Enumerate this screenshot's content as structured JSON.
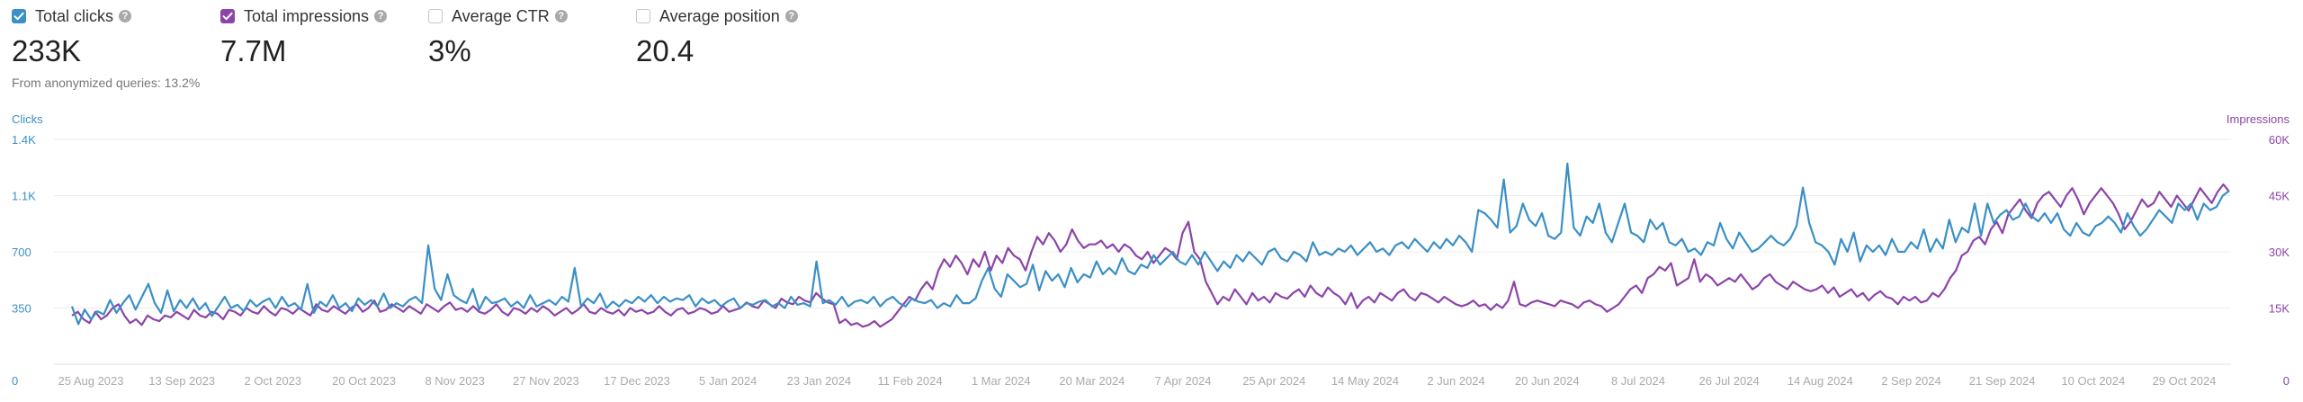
{
  "metrics": [
    {
      "label": "Total clicks",
      "value": "233K",
      "checked": true,
      "color": "#3a8fc6"
    },
    {
      "label": "Total impressions",
      "value": "7.7M",
      "checked": true,
      "color": "#8c44a8"
    },
    {
      "label": "Average CTR",
      "value": "3%",
      "checked": false
    },
    {
      "label": "Average position",
      "value": "20.4",
      "checked": false
    }
  ],
  "anonymized_note": "From anonymized queries: 13.2%",
  "chart_data": {
    "type": "line",
    "xlabel": "",
    "ylabel_left": "Clicks",
    "ylabel_right": "Impressions",
    "ylim_left": [
      0,
      1400
    ],
    "ylim_right": [
      0,
      60000
    ],
    "left_ticks": [
      "350",
      "700",
      "1.1K",
      "1.4K"
    ],
    "right_ticks": [
      "15K",
      "30K",
      "45K",
      "60K"
    ],
    "x_ticks": [
      "25 Aug 2023",
      "13 Sep 2023",
      "2 Oct 2023",
      "20 Oct 2023",
      "8 Nov 2023",
      "27 Nov 2023",
      "17 Dec 2023",
      "5 Jan 2024",
      "23 Jan 2024",
      "11 Feb 2024",
      "1 Mar 2024",
      "20 Mar 2024",
      "7 Apr 2024",
      "25 Apr 2024",
      "14 May 2024",
      "2 Jun 2024",
      "20 Jun 2024",
      "8 Jul 2024",
      "26 Jul 2024",
      "14 Aug 2024",
      "2 Sep 2024",
      "21 Sep 2024",
      "10 Oct 2024",
      "29 Oct 2024"
    ],
    "zero_left": "0",
    "zero_right": "0",
    "grid": true,
    "series": [
      {
        "name": "Clicks",
        "axis": "left",
        "color": "#3a8fc6",
        "values": [
          360,
          250,
          340,
          280,
          330,
          310,
          400,
          320,
          380,
          430,
          340,
          420,
          500,
          380,
          320,
          460,
          330,
          400,
          350,
          410,
          340,
          380,
          300,
          360,
          420,
          350,
          370,
          330,
          400,
          360,
          390,
          410,
          350,
          420,
          360,
          380,
          340,
          500,
          320,
          390,
          360,
          430,
          350,
          380,
          330,
          410,
          370,
          400,
          360,
          440,
          350,
          380,
          360,
          400,
          420,
          380,
          740,
          470,
          400,
          560,
          430,
          400,
          380,
          470,
          340,
          420,
          380,
          390,
          410,
          360,
          390,
          350,
          430,
          360,
          380,
          400,
          370,
          420,
          390,
          600,
          360,
          410,
          380,
          440,
          350,
          390,
          360,
          400,
          380,
          420,
          390,
          430,
          380,
          420,
          390,
          410,
          400,
          430,
          360,
          410,
          380,
          400,
          360,
          390,
          410,
          350,
          380,
          370,
          390,
          400,
          360,
          380,
          350,
          420,
          370,
          380,
          360,
          640,
          380,
          400,
          370,
          420,
          360,
          390,
          400,
          380,
          420,
          360,
          400,
          420,
          380,
          360,
          410,
          390,
          380,
          400,
          350,
          380,
          360,
          430,
          380,
          380,
          410,
          520,
          600,
          470,
          420,
          560,
          520,
          480,
          500,
          620,
          460,
          580,
          520,
          560,
          480,
          600,
          510,
          560,
          540,
          640,
          560,
          600,
          560,
          660,
          580,
          560,
          620,
          600,
          680,
          620,
          660,
          700,
          640,
          620,
          680,
          620,
          700,
          640,
          580,
          640,
          600,
          680,
          640,
          700,
          660,
          620,
          700,
          720,
          660,
          640,
          700,
          680,
          640,
          760,
          680,
          700,
          680,
          720,
          700,
          740,
          680,
          720,
          760,
          700,
          720,
          680,
          740,
          760,
          720,
          780,
          740,
          700,
          760,
          720,
          780,
          740,
          800,
          760,
          700,
          960,
          940,
          900,
          850,
          1150,
          820,
          860,
          1000,
          900,
          860,
          940,
          800,
          780,
          820,
          1250,
          850,
          800,
          920,
          880,
          1000,
          820,
          760,
          880,
          1000,
          820,
          800,
          760,
          900,
          840,
          880,
          760,
          740,
          780,
          700,
          720,
          680,
          760,
          740,
          880,
          780,
          720,
          820,
          760,
          700,
          720,
          760,
          800,
          760,
          740,
          780,
          860,
          1100,
          880,
          760,
          740,
          700,
          620,
          780,
          700,
          820,
          640,
          740,
          700,
          740,
          680,
          780,
          700,
          700,
          760,
          720,
          840,
          700,
          780,
          720,
          900,
          760,
          850,
          820,
          1000,
          800,
          1000,
          880,
          930,
          960,
          900,
          920,
          1000,
          920,
          890,
          940,
          880,
          940,
          840,
          800,
          880,
          820,
          800,
          860,
          880,
          920,
          880,
          820,
          940,
          860,
          800,
          840,
          900,
          960,
          920,
          880,
          1000,
          960,
          1000,
          900,
          1000,
          960,
          980,
          1050,
          1080
        ]
      },
      {
        "name": "Impressions",
        "axis": "right",
        "color": "#8c44a8",
        "values": [
          13000,
          14000,
          12000,
          11000,
          14000,
          12000,
          13000,
          15000,
          16000,
          13000,
          11000,
          12000,
          10500,
          13000,
          12000,
          11500,
          13000,
          12500,
          14000,
          13000,
          12000,
          14500,
          13000,
          12500,
          14000,
          13500,
          12000,
          14500,
          14000,
          13000,
          15000,
          14000,
          13500,
          15500,
          14000,
          13000,
          15000,
          14500,
          13500,
          15000,
          14000,
          13000,
          16000,
          14500,
          14000,
          15500,
          14500,
          13500,
          15000,
          16000,
          14000,
          15000,
          17000,
          14000,
          14500,
          16000,
          15000,
          14000,
          15500,
          14500,
          13500,
          16000,
          15000,
          14000,
          15500,
          16500,
          14500,
          15000,
          14000,
          15500,
          14000,
          13500,
          14500,
          16000,
          14000,
          13000,
          15000,
          14500,
          13500,
          15000,
          14000,
          15500,
          14500,
          13000,
          14000,
          15000,
          13500,
          14500,
          16000,
          14000,
          13500,
          15000,
          14000,
          13500,
          14500,
          13000,
          15000,
          14000,
          14500,
          13500,
          14000,
          15500,
          14000,
          13000,
          14500,
          15000,
          13500,
          14000,
          15000,
          14500,
          13500,
          14000,
          15500,
          14000,
          14500,
          15000,
          16500,
          15500,
          15000,
          17000,
          16000,
          15000,
          17500,
          16500,
          16000,
          18000,
          17000,
          16500,
          19000,
          17500,
          16500,
          16000,
          11000,
          12000,
          10500,
          11000,
          10000,
          10500,
          11500,
          10000,
          11000,
          12000,
          14000,
          16000,
          18000,
          17000,
          20000,
          22000,
          20000,
          25000,
          28000,
          26000,
          29000,
          27000,
          24000,
          28000,
          26000,
          30000,
          25000,
          29000,
          27000,
          31000,
          29000,
          28000,
          25000,
          30000,
          34000,
          32000,
          35000,
          33000,
          30000,
          32000,
          36000,
          33000,
          31000,
          32000,
          32000,
          33000,
          31000,
          32000,
          30000,
          32000,
          31000,
          29000,
          28000,
          30000,
          27000,
          29000,
          31000,
          30000,
          28000,
          35000,
          38000,
          30000,
          28000,
          22000,
          19000,
          16000,
          18000,
          17000,
          20000,
          18000,
          16000,
          19000,
          17000,
          18000,
          16500,
          19000,
          18000,
          17500,
          19000,
          20000,
          18000,
          21000,
          19000,
          18000,
          20500,
          19000,
          18000,
          16000,
          19000,
          15000,
          17000,
          18000,
          16500,
          19000,
          18000,
          17000,
          19000,
          20000,
          18000,
          17000,
          19000,
          18500,
          17500,
          16500,
          18000,
          17000,
          16000,
          15500,
          16000,
          17000,
          15500,
          16000,
          14500,
          16000,
          15000,
          17000,
          22000,
          16000,
          15500,
          16500,
          17000,
          16500,
          16000,
          15500,
          17000,
          16500,
          16000,
          15000,
          16500,
          17000,
          16000,
          15500,
          14000,
          15000,
          16000,
          18000,
          20000,
          21000,
          19000,
          23000,
          24000,
          26000,
          25000,
          27000,
          21000,
          22000,
          23000,
          28000,
          22000,
          24000,
          23000,
          21000,
          22000,
          23000,
          22000,
          24000,
          22000,
          20000,
          21000,
          23000,
          24000,
          22000,
          21000,
          20000,
          22000,
          21000,
          20000,
          19500,
          20000,
          21000,
          19000,
          20500,
          18000,
          19000,
          20000,
          18000,
          19000,
          17000,
          18500,
          19500,
          18000,
          17500,
          16000,
          18000,
          17000,
          18000,
          16500,
          17000,
          19000,
          18000,
          20000,
          23000,
          25000,
          29000,
          30000,
          33000,
          34000,
          32000,
          36000,
          38000,
          35000,
          40000,
          42000,
          44000,
          41000,
          39000,
          43000,
          45000,
          46000,
          44000,
          42000,
          45000,
          47000,
          44000,
          40000,
          43000,
          45000,
          47000,
          45000,
          43000,
          40000,
          36000,
          38000,
          41000,
          44000,
          42000,
          43000,
          46000,
          44000,
          42000,
          45000,
          43000,
          41000,
          44000,
          47000,
          45000,
          43000,
          46000,
          48000,
          46000
        ]
      }
    ]
  }
}
